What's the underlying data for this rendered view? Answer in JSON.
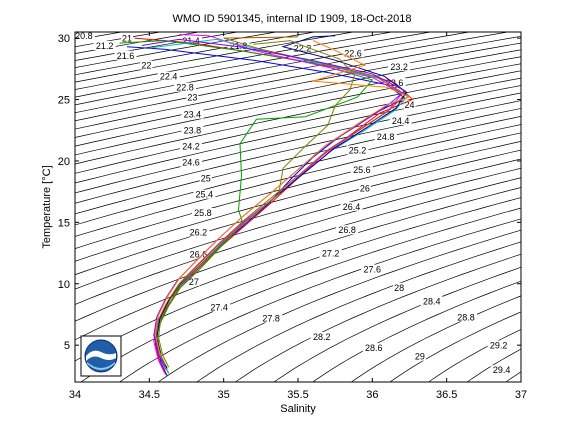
{
  "chart_data": {
    "type": "scatter",
    "title": "WMO ID 5901345, internal ID 1909, 18-Oct-2018",
    "xlabel": "Salinity",
    "ylabel": "Temperature [°C]",
    "xlim": [
      34,
      37
    ],
    "ylim": [
      2,
      30.5
    ],
    "x_ticks": [
      "34",
      "34.5",
      "35",
      "35.5",
      "36",
      "36.5",
      "37"
    ],
    "y_ticks": [
      "5",
      "10",
      "15",
      "20",
      "25",
      "30"
    ],
    "x_tick_values": [
      34,
      34.5,
      35,
      35.5,
      36,
      36.5,
      37
    ],
    "y_tick_values": [
      5,
      10,
      15,
      20,
      25,
      30
    ],
    "grid": false,
    "isopycnal_labels": [
      {
        "text": "20.8",
        "s": 34.06,
        "t": 30.0
      },
      {
        "text": "21",
        "s": 34.35,
        "t": 29.8
      },
      {
        "text": "21.2",
        "s": 34.2,
        "t": 29.2
      },
      {
        "text": "21.4",
        "s": 34.78,
        "t": 29.6
      },
      {
        "text": "21.6",
        "s": 34.34,
        "t": 28.4
      },
      {
        "text": "21.8",
        "s": 35.1,
        "t": 29.2
      },
      {
        "text": "22",
        "s": 34.48,
        "t": 27.6
      },
      {
        "text": "22.2",
        "s": 35.53,
        "t": 29.0
      },
      {
        "text": "22.4",
        "s": 34.63,
        "t": 26.7
      },
      {
        "text": "22.6",
        "s": 35.87,
        "t": 28.6
      },
      {
        "text": "22.8",
        "s": 34.74,
        "t": 25.8
      },
      {
        "text": "23",
        "s": 34.79,
        "t": 25.0
      },
      {
        "text": "23.2",
        "s": 36.18,
        "t": 27.5
      },
      {
        "text": "23.4",
        "s": 34.79,
        "t": 23.6
      },
      {
        "text": "23.6",
        "s": 36.15,
        "t": 26.2
      },
      {
        "text": "23.8",
        "s": 34.79,
        "t": 22.3
      },
      {
        "text": "24",
        "s": 36.25,
        "t": 24.4
      },
      {
        "text": "24.2",
        "s": 34.78,
        "t": 21.0
      },
      {
        "text": "24.4",
        "s": 36.19,
        "t": 23.1
      },
      {
        "text": "24.6",
        "s": 34.78,
        "t": 19.7
      },
      {
        "text": "24.8",
        "s": 36.09,
        "t": 21.8
      },
      {
        "text": "25",
        "s": 34.88,
        "t": 18.4
      },
      {
        "text": "25.2",
        "s": 35.9,
        "t": 20.7
      },
      {
        "text": "25.4",
        "s": 34.87,
        "t": 17.1
      },
      {
        "text": "25.6",
        "s": 35.93,
        "t": 19.1
      },
      {
        "text": "25.8",
        "s": 34.86,
        "t": 15.6
      },
      {
        "text": "26",
        "s": 35.95,
        "t": 17.6
      },
      {
        "text": "26.2",
        "s": 34.83,
        "t": 14.0
      },
      {
        "text": "26.4",
        "s": 35.86,
        "t": 16.1
      },
      {
        "text": "26.6",
        "s": 34.83,
        "t": 12.2
      },
      {
        "text": "26.8",
        "s": 35.83,
        "t": 14.2
      },
      {
        "text": "27",
        "s": 34.8,
        "t": 10.0
      },
      {
        "text": "27.2",
        "s": 35.72,
        "t": 12.3
      },
      {
        "text": "27.4",
        "s": 34.97,
        "t": 7.9
      },
      {
        "text": "27.6",
        "s": 36.0,
        "t": 11.0
      },
      {
        "text": "27.8",
        "s": 35.32,
        "t": 7.0
      },
      {
        "text": "28",
        "s": 36.18,
        "t": 9.5
      },
      {
        "text": "28.2",
        "s": 35.66,
        "t": 5.5
      },
      {
        "text": "28.4",
        "s": 36.4,
        "t": 8.4
      },
      {
        "text": "28.6",
        "s": 36.01,
        "t": 4.6
      },
      {
        "text": "28.8",
        "s": 36.63,
        "t": 7.1
      },
      {
        "text": "29",
        "s": 36.32,
        "t": 3.9
      },
      {
        "text": "29.2",
        "s": 36.85,
        "t": 4.8
      },
      {
        "text": "29.4",
        "s": 36.87,
        "t": 2.8
      }
    ],
    "series": [
      {
        "color": "#0000ff",
        "points": [
          [
            34.62,
            2.5
          ],
          [
            34.58,
            3.5
          ],
          [
            34.55,
            5
          ],
          [
            34.55,
            6.5
          ],
          [
            34.6,
            8
          ],
          [
            34.68,
            9.5
          ],
          [
            34.8,
            11
          ],
          [
            34.95,
            12.8
          ],
          [
            35.12,
            14.6
          ],
          [
            35.3,
            16.5
          ],
          [
            35.45,
            18.5
          ],
          [
            35.6,
            20.3
          ],
          [
            35.78,
            22
          ],
          [
            36.0,
            23.8
          ],
          [
            36.22,
            25.1
          ],
          [
            36.1,
            26.2
          ],
          [
            35.7,
            27.2
          ],
          [
            35.2,
            28.2
          ],
          [
            34.6,
            29.1
          ],
          [
            34.35,
            29.3
          ]
        ]
      },
      {
        "color": "#ff0000",
        "points": [
          [
            34.61,
            2.6
          ],
          [
            34.57,
            3.6
          ],
          [
            34.54,
            5.1
          ],
          [
            34.56,
            6.6
          ],
          [
            34.62,
            8.1
          ],
          [
            34.7,
            9.6
          ],
          [
            34.82,
            11.1
          ],
          [
            34.97,
            12.9
          ],
          [
            35.14,
            14.7
          ],
          [
            35.32,
            16.6
          ],
          [
            35.5,
            18.6
          ],
          [
            35.66,
            20.4
          ],
          [
            35.85,
            22.1
          ],
          [
            36.05,
            23.9
          ],
          [
            36.27,
            25.0
          ],
          [
            36.15,
            26.4
          ],
          [
            35.8,
            27.5
          ],
          [
            35.3,
            28.6
          ],
          [
            34.8,
            29.6
          ],
          [
            34.4,
            30.0
          ]
        ]
      },
      {
        "color": "#00a000",
        "points": [
          [
            34.63,
            2.7
          ],
          [
            34.59,
            3.7
          ],
          [
            34.56,
            5.2
          ],
          [
            34.57,
            6.7
          ],
          [
            34.63,
            8.2
          ],
          [
            34.71,
            9.7
          ],
          [
            34.84,
            11.2
          ],
          [
            34.98,
            13.0
          ],
          [
            35.13,
            14.9
          ],
          [
            35.1,
            16
          ],
          [
            35.12,
            18.8
          ],
          [
            35.11,
            21.4
          ],
          [
            35.22,
            23.4
          ],
          [
            35.55,
            23.6
          ],
          [
            35.9,
            25.2
          ],
          [
            36.0,
            26.6
          ],
          [
            35.6,
            28.0
          ],
          [
            35.1,
            29.0
          ],
          [
            34.6,
            29.8
          ],
          [
            34.3,
            29.6
          ]
        ]
      },
      {
        "color": "#ff00ff",
        "points": [
          [
            34.6,
            2.8
          ],
          [
            34.56,
            3.8
          ],
          [
            34.53,
            5.3
          ],
          [
            34.55,
            6.8
          ],
          [
            34.61,
            8.3
          ],
          [
            34.69,
            9.8
          ],
          [
            34.81,
            11.3
          ],
          [
            34.96,
            13.1
          ],
          [
            35.13,
            15.0
          ],
          [
            35.33,
            16.9
          ],
          [
            35.52,
            18.9
          ],
          [
            35.69,
            20.7
          ],
          [
            35.9,
            22.4
          ],
          [
            36.1,
            24.0
          ],
          [
            36.2,
            25.5
          ],
          [
            36.0,
            26.8
          ],
          [
            35.6,
            27.9
          ],
          [
            35.2,
            29.0
          ],
          [
            34.9,
            30.2
          ],
          [
            34.7,
            30.3
          ]
        ]
      },
      {
        "color": "#00c0c0",
        "points": [
          [
            34.62,
            2.9
          ],
          [
            34.58,
            3.9
          ],
          [
            34.55,
            5.4
          ],
          [
            34.56,
            6.9
          ],
          [
            34.62,
            8.4
          ],
          [
            34.7,
            9.9
          ],
          [
            34.83,
            11.4
          ],
          [
            34.98,
            13.2
          ],
          [
            35.15,
            15.1
          ],
          [
            35.34,
            17.0
          ],
          [
            35.54,
            19.0
          ],
          [
            35.72,
            20.8
          ],
          [
            35.95,
            22.5
          ],
          [
            36.15,
            24.1
          ],
          [
            36.24,
            25.3
          ],
          [
            36.05,
            26.7
          ],
          [
            35.7,
            27.8
          ],
          [
            35.3,
            28.9
          ],
          [
            34.95,
            29.9
          ],
          [
            34.5,
            29.2
          ]
        ]
      },
      {
        "color": "#a06000",
        "points": [
          [
            34.61,
            3.0
          ],
          [
            34.57,
            4.0
          ],
          [
            34.54,
            5.5
          ],
          [
            34.56,
            7.0
          ],
          [
            34.62,
            8.5
          ],
          [
            34.7,
            10.0
          ],
          [
            34.82,
            11.5
          ],
          [
            34.97,
            13.3
          ],
          [
            35.14,
            15.2
          ],
          [
            35.33,
            17.1
          ],
          [
            35.53,
            19.1
          ],
          [
            35.7,
            20.9
          ],
          [
            35.92,
            22.6
          ],
          [
            36.12,
            24.2
          ],
          [
            36.22,
            25.4
          ],
          [
            36.02,
            26.9
          ],
          [
            35.65,
            28.0
          ],
          [
            35.25,
            29.1
          ],
          [
            35.0,
            30.0
          ],
          [
            35.5,
            30.1
          ]
        ]
      },
      {
        "color": "#000080",
        "points": [
          [
            34.62,
            3.1
          ],
          [
            34.58,
            4.1
          ],
          [
            34.55,
            5.6
          ],
          [
            34.57,
            7.1
          ],
          [
            34.63,
            8.6
          ],
          [
            34.72,
            10.1
          ],
          [
            34.85,
            11.6
          ],
          [
            35.0,
            13.4
          ],
          [
            35.17,
            15.3
          ],
          [
            35.36,
            17.2
          ],
          [
            35.56,
            19.2
          ],
          [
            35.74,
            21.0
          ],
          [
            35.96,
            22.7
          ],
          [
            36.16,
            24.3
          ],
          [
            36.23,
            25.6
          ],
          [
            36.08,
            26.9
          ],
          [
            35.75,
            28.2
          ],
          [
            35.4,
            29.3
          ],
          [
            35.6,
            30.1
          ],
          [
            35.75,
            30.2
          ]
        ]
      },
      {
        "color": "#808000",
        "points": [
          [
            34.63,
            3.2
          ],
          [
            34.59,
            4.2
          ],
          [
            34.56,
            5.7
          ],
          [
            34.58,
            7.2
          ],
          [
            34.64,
            8.7
          ],
          [
            34.73,
            10.2
          ],
          [
            34.86,
            11.7
          ],
          [
            35.01,
            13.5
          ],
          [
            35.18,
            15.4
          ],
          [
            35.37,
            17.3
          ],
          [
            35.4,
            19.4
          ],
          [
            35.55,
            21.2
          ],
          [
            35.7,
            22.9
          ],
          [
            35.75,
            24.5
          ],
          [
            35.85,
            25.8
          ],
          [
            35.88,
            27.0
          ],
          [
            35.78,
            28.3
          ],
          [
            35.55,
            29.3
          ],
          [
            35.45,
            29.8
          ],
          [
            35.2,
            29.5
          ]
        ]
      },
      {
        "color": "#8000ff",
        "points": [
          [
            34.6,
            3.3
          ],
          [
            34.56,
            4.3
          ],
          [
            34.53,
            5.8
          ],
          [
            34.55,
            7.3
          ],
          [
            34.61,
            8.8
          ],
          [
            34.69,
            10.3
          ],
          [
            34.81,
            11.8
          ],
          [
            34.96,
            13.6
          ],
          [
            35.13,
            15.5
          ],
          [
            35.32,
            17.4
          ],
          [
            35.51,
            19.4
          ],
          [
            35.68,
            21.2
          ],
          [
            35.9,
            22.9
          ],
          [
            36.1,
            24.5
          ],
          [
            36.22,
            25.7
          ],
          [
            36.0,
            27.1
          ],
          [
            35.55,
            28.3
          ],
          [
            35.1,
            29.3
          ],
          [
            34.7,
            29.9
          ],
          [
            34.45,
            29.4
          ]
        ]
      },
      {
        "color": "#ff8000",
        "points": [
          [
            34.61,
            3.4
          ],
          [
            34.57,
            4.4
          ],
          [
            34.54,
            5.9
          ],
          [
            34.56,
            7.4
          ],
          [
            34.62,
            8.9
          ],
          [
            34.7,
            10.4
          ],
          [
            34.82,
            11.9
          ],
          [
            34.97,
            13.7
          ],
          [
            35.14,
            15.6
          ],
          [
            35.33,
            17.5
          ],
          [
            35.52,
            19.5
          ],
          [
            35.69,
            21.3
          ],
          [
            35.9,
            23.0
          ],
          [
            36.1,
            24.6
          ],
          [
            36.25,
            25.2
          ],
          [
            36.1,
            26.0
          ],
          [
            35.6,
            26.5
          ],
          [
            35.95,
            27.8
          ],
          [
            35.75,
            29.0
          ],
          [
            35.6,
            29.8
          ]
        ]
      }
    ]
  }
}
